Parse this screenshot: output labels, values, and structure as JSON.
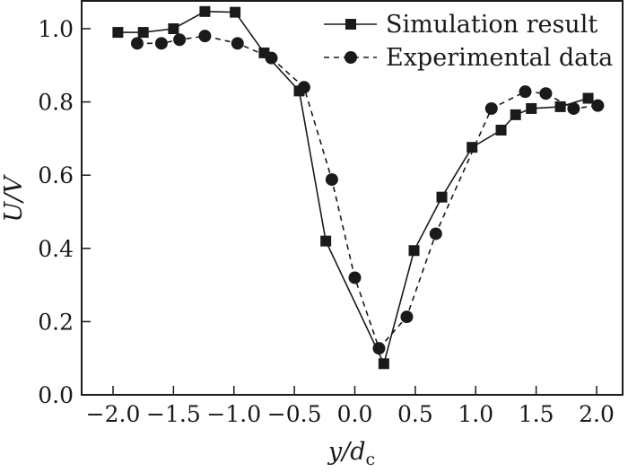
{
  "chart_data": {
    "type": "line",
    "title": "",
    "xlabel": "y/d",
    "xlabel_sub": "c",
    "ylabel": "U/V",
    "xlim": [
      -2.26,
      2.22
    ],
    "ylim": [
      0.0,
      1.08
    ],
    "xticks": [
      "-2.0",
      "-1.5",
      "-1.0",
      "-0.5",
      "0.0",
      "0.5",
      "1.0",
      "1.5",
      "2.0"
    ],
    "xtick_values": [
      -2.0,
      -1.5,
      -1.0,
      -0.5,
      0.0,
      0.5,
      1.0,
      1.5,
      2.0
    ],
    "yticks": [
      "0.0",
      "0.2",
      "0.4",
      "0.6",
      "0.8",
      "1.0"
    ],
    "ytick_values": [
      0.0,
      0.2,
      0.4,
      0.6,
      0.8,
      1.0
    ],
    "grid": false,
    "legend_position": "top-right",
    "series": [
      {
        "name": "Simulation result",
        "line": "solid",
        "marker": "square",
        "x": [
          -1.96,
          -1.75,
          -1.5,
          -1.24,
          -0.99,
          -0.75,
          -0.46,
          -0.24,
          0.24,
          0.49,
          0.72,
          0.97,
          1.21,
          1.33,
          1.46,
          1.7,
          1.93
        ],
        "y": [
          0.99,
          0.99,
          1.0,
          1.047,
          1.045,
          0.934,
          0.83,
          0.42,
          0.085,
          0.394,
          0.54,
          0.676,
          0.723,
          0.765,
          0.782,
          0.787,
          0.81
        ]
      },
      {
        "name": "Experimental data",
        "line": "dashed",
        "marker": "circle",
        "x": [
          -1.8,
          -1.6,
          -1.45,
          -1.24,
          -0.97,
          -0.69,
          -0.42,
          -0.19,
          0.0,
          0.2,
          0.43,
          0.67,
          1.13,
          1.41,
          1.58,
          1.81,
          2.01
        ],
        "y": [
          0.96,
          0.96,
          0.97,
          0.98,
          0.96,
          0.92,
          0.84,
          0.588,
          0.32,
          0.127,
          0.213,
          0.44,
          0.782,
          0.828,
          0.823,
          0.782,
          0.79
        ]
      }
    ],
    "colors": {
      "ink": "#1a1a1a",
      "background": "#ffffff"
    }
  }
}
